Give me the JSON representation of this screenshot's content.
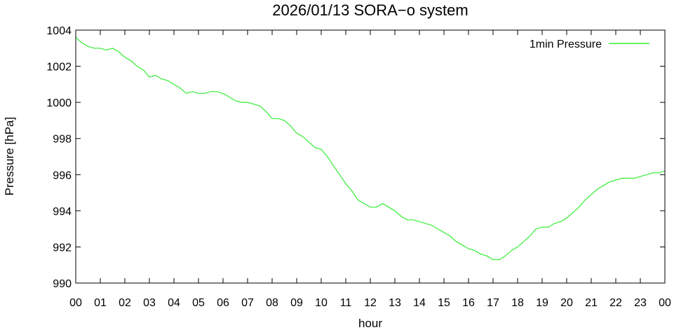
{
  "chart_data": {
    "type": "line",
    "title": "2026/01/13 SORA−o system",
    "xlabel": "hour",
    "ylabel": "Pressure [hPa]",
    "xlim": [
      0,
      24
    ],
    "ylim": [
      990,
      1004
    ],
    "x_tick_labels": [
      "00",
      "01",
      "02",
      "03",
      "04",
      "05",
      "06",
      "07",
      "08",
      "09",
      "10",
      "11",
      "12",
      "13",
      "14",
      "15",
      "16",
      "17",
      "18",
      "19",
      "20",
      "21",
      "22",
      "23",
      "00"
    ],
    "y_ticks": [
      990,
      992,
      994,
      996,
      998,
      1000,
      1002,
      1004
    ],
    "y_tick_labels": [
      "990",
      "992",
      "994",
      "996",
      "998",
      "1000",
      "1002",
      "1004"
    ],
    "legend_position": "top-right",
    "grid": false,
    "series": [
      {
        "name": "1min Pressure",
        "color": "#33ee33",
        "x": [
          0.0,
          0.25,
          0.5,
          0.75,
          1.0,
          1.25,
          1.5,
          1.75,
          2.0,
          2.25,
          2.5,
          2.75,
          3.0,
          3.25,
          3.5,
          3.75,
          4.0,
          4.25,
          4.5,
          4.75,
          5.0,
          5.25,
          5.5,
          5.75,
          6.0,
          6.25,
          6.5,
          6.75,
          7.0,
          7.25,
          7.5,
          7.75,
          8.0,
          8.25,
          8.5,
          8.75,
          9.0,
          9.25,
          9.5,
          9.75,
          10.0,
          10.25,
          10.5,
          10.75,
          11.0,
          11.25,
          11.5,
          11.75,
          12.0,
          12.25,
          12.5,
          12.75,
          13.0,
          13.25,
          13.5,
          13.75,
          14.0,
          14.25,
          14.5,
          14.75,
          15.0,
          15.25,
          15.5,
          15.75,
          16.0,
          16.25,
          16.5,
          16.75,
          17.0,
          17.25,
          17.5,
          17.75,
          18.0,
          18.25,
          18.5,
          18.75,
          19.0,
          19.25,
          19.5,
          19.75,
          20.0,
          20.25,
          20.5,
          20.75,
          21.0,
          21.25,
          21.5,
          21.75,
          22.0,
          22.25,
          22.5,
          22.75,
          23.0,
          23.25,
          23.5,
          23.75,
          24.0
        ],
        "values": [
          1003.6,
          1003.3,
          1003.1,
          1003.0,
          1003.0,
          1002.9,
          1003.0,
          1002.8,
          1002.5,
          1002.3,
          1002.0,
          1001.8,
          1001.4,
          1001.5,
          1001.3,
          1001.2,
          1001.0,
          1000.8,
          1000.5,
          1000.6,
          1000.5,
          1000.5,
          1000.6,
          1000.6,
          1000.5,
          1000.3,
          1000.1,
          1000.0,
          1000.0,
          999.9,
          999.8,
          999.5,
          999.1,
          999.1,
          999.0,
          998.7,
          998.3,
          998.1,
          997.8,
          997.5,
          997.4,
          997.0,
          996.5,
          996.0,
          995.5,
          995.1,
          994.6,
          994.4,
          994.2,
          994.2,
          994.4,
          994.2,
          994.0,
          993.7,
          993.5,
          993.5,
          993.4,
          993.3,
          993.2,
          993.0,
          992.8,
          992.6,
          992.3,
          992.1,
          991.9,
          991.8,
          991.6,
          991.5,
          991.3,
          991.3,
          991.5,
          991.8,
          992.0,
          992.3,
          992.6,
          993.0,
          993.1,
          993.1,
          993.3,
          993.4,
          993.6,
          993.9,
          994.2,
          994.6,
          994.9,
          995.2,
          995.4,
          995.6,
          995.7,
          995.8,
          995.8,
          995.8,
          995.9,
          996.0,
          996.1,
          996.1,
          996.2
        ]
      }
    ]
  }
}
